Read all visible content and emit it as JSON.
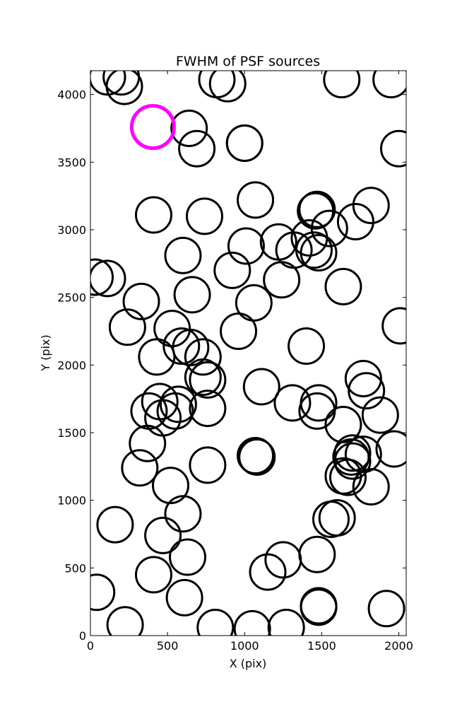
{
  "chart_data": {
    "type": "scatter",
    "title": "FWHM of PSF sources",
    "xlabel": "X (pix)",
    "ylabel": "Y (pix)",
    "xlim": [
      0,
      2048
    ],
    "ylim": [
      0,
      4176
    ],
    "x_ticks": [
      0,
      500,
      1000,
      1500,
      2000
    ],
    "y_ticks": [
      0,
      500,
      1000,
      1500,
      2000,
      2500,
      3000,
      3500,
      4000
    ],
    "grid": false,
    "marker": "open-circle",
    "series": [
      {
        "color": "#000000",
        "points": [
          {
            "x": 40,
            "y": 320
          },
          {
            "x": 225,
            "y": 80
          },
          {
            "x": 160,
            "y": 820
          },
          {
            "x": 410,
            "y": 450
          },
          {
            "x": 610,
            "y": 280
          },
          {
            "x": 630,
            "y": 580
          },
          {
            "x": 470,
            "y": 740
          },
          {
            "x": 600,
            "y": 900
          },
          {
            "x": 520,
            "y": 1110
          },
          {
            "x": 320,
            "y": 1240
          },
          {
            "x": 760,
            "y": 1260
          },
          {
            "x": 370,
            "y": 1420
          },
          {
            "x": 470,
            "y": 1610
          },
          {
            "x": 380,
            "y": 1660
          },
          {
            "x": 450,
            "y": 1730
          },
          {
            "x": 550,
            "y": 1660
          },
          {
            "x": 570,
            "y": 1710
          },
          {
            "x": 760,
            "y": 1680
          },
          {
            "x": 730,
            "y": 1910
          },
          {
            "x": 760,
            "y": 1890
          },
          {
            "x": 430,
            "y": 2060
          },
          {
            "x": 590,
            "y": 2140
          },
          {
            "x": 650,
            "y": 2130
          },
          {
            "x": 730,
            "y": 2060
          },
          {
            "x": 530,
            "y": 2270
          },
          {
            "x": 240,
            "y": 2280
          },
          {
            "x": 330,
            "y": 2470
          },
          {
            "x": 660,
            "y": 2520
          },
          {
            "x": 30,
            "y": 2650
          },
          {
            "x": 110,
            "y": 2640
          },
          {
            "x": 600,
            "y": 2810
          },
          {
            "x": 410,
            "y": 3110
          },
          {
            "x": 740,
            "y": 3100
          },
          {
            "x": 640,
            "y": 3750
          },
          {
            "x": 690,
            "y": 3600
          },
          {
            "x": 200,
            "y": 4130
          },
          {
            "x": 110,
            "y": 4130
          },
          {
            "x": 220,
            "y": 4060
          },
          {
            "x": 820,
            "y": 4110
          },
          {
            "x": 890,
            "y": 4080
          },
          {
            "x": 1000,
            "y": 3640
          },
          {
            "x": 1000,
            "y": 3640
          },
          {
            "x": 1070,
            "y": 3220
          },
          {
            "x": 1010,
            "y": 2880
          },
          {
            "x": 920,
            "y": 2700
          },
          {
            "x": 1060,
            "y": 2460
          },
          {
            "x": 960,
            "y": 2250
          },
          {
            "x": 1110,
            "y": 1840
          },
          {
            "x": 1310,
            "y": 1720
          },
          {
            "x": 1400,
            "y": 2140
          },
          {
            "x": 1240,
            "y": 2630
          },
          {
            "x": 1220,
            "y": 2910
          },
          {
            "x": 1320,
            "y": 2850
          },
          {
            "x": 1420,
            "y": 2940
          },
          {
            "x": 1450,
            "y": 2850
          },
          {
            "x": 1480,
            "y": 2830
          },
          {
            "x": 1470,
            "y": 3150
          },
          {
            "x": 1460,
            "y": 3140
          },
          {
            "x": 1550,
            "y": 3010
          },
          {
            "x": 1720,
            "y": 3060
          },
          {
            "x": 1820,
            "y": 3180
          },
          {
            "x": 1640,
            "y": 2580
          },
          {
            "x": 1480,
            "y": 1720
          },
          {
            "x": 1470,
            "y": 1660
          },
          {
            "x": 1640,
            "y": 1560
          },
          {
            "x": 1770,
            "y": 1900
          },
          {
            "x": 1790,
            "y": 1810
          },
          {
            "x": 1880,
            "y": 1630
          },
          {
            "x": 1970,
            "y": 1380
          },
          {
            "x": 1700,
            "y": 1350
          },
          {
            "x": 1770,
            "y": 1340
          },
          {
            "x": 1690,
            "y": 1320
          },
          {
            "x": 1700,
            "y": 1290
          },
          {
            "x": 1640,
            "y": 1180
          },
          {
            "x": 1670,
            "y": 1170
          },
          {
            "x": 1820,
            "y": 1100
          },
          {
            "x": 1560,
            "y": 860
          },
          {
            "x": 1600,
            "y": 870
          },
          {
            "x": 1470,
            "y": 600
          },
          {
            "x": 1480,
            "y": 210
          },
          {
            "x": 1480,
            "y": 220
          },
          {
            "x": 1150,
            "y": 470
          },
          {
            "x": 1250,
            "y": 560
          },
          {
            "x": 1070,
            "y": 1330
          },
          {
            "x": 1080,
            "y": 1320
          },
          {
            "x": 1270,
            "y": 60
          },
          {
            "x": 1050,
            "y": 50
          },
          {
            "x": 810,
            "y": 60
          },
          {
            "x": 1920,
            "y": 200
          },
          {
            "x": 2010,
            "y": 2290
          },
          {
            "x": 2000,
            "y": 3600
          },
          {
            "x": 1950,
            "y": 4110
          },
          {
            "x": 1630,
            "y": 4110
          }
        ]
      },
      {
        "color": "#ff00ff",
        "points": [
          {
            "x": 405,
            "y": 3760
          }
        ]
      }
    ]
  }
}
